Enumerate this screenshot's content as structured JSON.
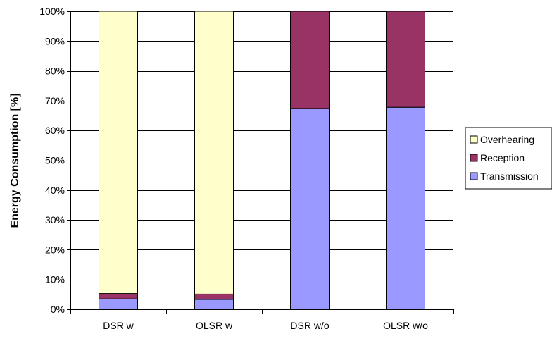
{
  "chart_data": {
    "type": "bar",
    "stacked": true,
    "percent_stacked": true,
    "categories": [
      "DSR w",
      "OLSR w",
      "DSR w/o",
      "OLSR w/o"
    ],
    "series": [
      {
        "name": "Transmission",
        "color": "#9999ff",
        "values": [
          3.5,
          3.3,
          67.4,
          67.8
        ]
      },
      {
        "name": "Reception",
        "color": "#993366",
        "values": [
          1.8,
          1.8,
          32.6,
          32.2
        ]
      },
      {
        "name": "Overhearing",
        "color": "#ffffcc",
        "values": [
          94.7,
          94.9,
          0,
          0
        ]
      }
    ],
    "legend_order": [
      "Overhearing",
      "Reception",
      "Transmission"
    ],
    "ylabel": "Energy Consumption [%]",
    "xlabel": "",
    "title": "",
    "ylim": [
      0,
      100
    ],
    "yticks": [
      "0%",
      "10%",
      "20%",
      "30%",
      "40%",
      "50%",
      "60%",
      "70%",
      "80%",
      "90%",
      "100%"
    ],
    "grid": true,
    "legend_position": "right"
  }
}
